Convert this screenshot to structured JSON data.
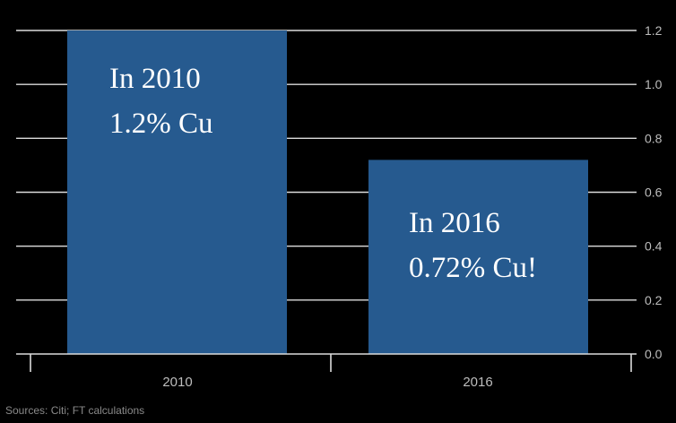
{
  "chart_data": {
    "type": "bar",
    "categories": [
      "2010",
      "2016"
    ],
    "values": [
      1.2,
      0.72
    ],
    "ylim": [
      0,
      1.2
    ],
    "y_ticks": [
      "0.0",
      "0.2",
      "0.4",
      "0.6",
      "0.8",
      "1.0",
      "1.2"
    ],
    "y_axis_side": "right",
    "grid": true,
    "title": "",
    "xlabel": "",
    "ylabel": "",
    "annotations": [
      {
        "lines": [
          "In 2010",
          "1.2% Cu"
        ]
      },
      {
        "lines": [
          "In 2016",
          "0.72% Cu!"
        ]
      }
    ]
  },
  "colors": {
    "background": "#000000",
    "bar": "#265a8f",
    "grid": "#dcdcdc",
    "text": "#bdbdbd"
  },
  "source": "Sources: Citi; FT calculations"
}
